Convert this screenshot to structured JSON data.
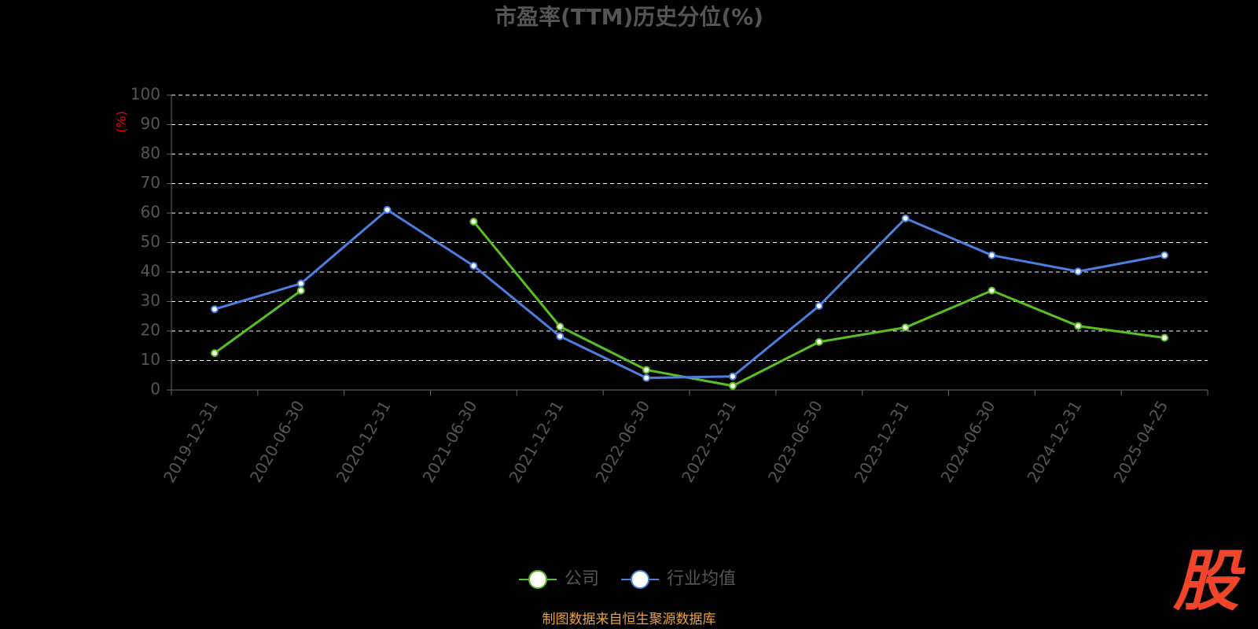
{
  "chart_data": {
    "type": "line",
    "title": "市盈率(TTM)历史分位(%)",
    "y_label": "(%)",
    "categories": [
      "2019-12-31",
      "2020-06-30",
      "2020-12-31",
      "2021-06-30",
      "2021-12-31",
      "2022-06-30",
      "2022-12-31",
      "2023-06-30",
      "2023-12-31",
      "2024-06-30",
      "2024-12-31",
      "2025-04-25"
    ],
    "series": [
      {
        "name": "公司",
        "color": "#58c021",
        "values": [
          12.5,
          33.7,
          null,
          57.1,
          21.5,
          6.8,
          1.4,
          16.3,
          21.2,
          33.7,
          21.7,
          17.7
        ]
      },
      {
        "name": "行业均值",
        "color": "#4b7fe0",
        "values": [
          27.4,
          36.1,
          61.1,
          42.1,
          18.2,
          4.1,
          4.6,
          28.5,
          58.2,
          45.7,
          40.2,
          45.7
        ]
      }
    ],
    "ylim": [
      0,
      100
    ],
    "yticks": [
      0,
      10,
      20,
      30,
      40,
      50,
      60,
      70,
      80,
      90,
      100
    ],
    "grid": true,
    "source": "制图数据来自恒生聚源数据库",
    "logo": "股"
  }
}
